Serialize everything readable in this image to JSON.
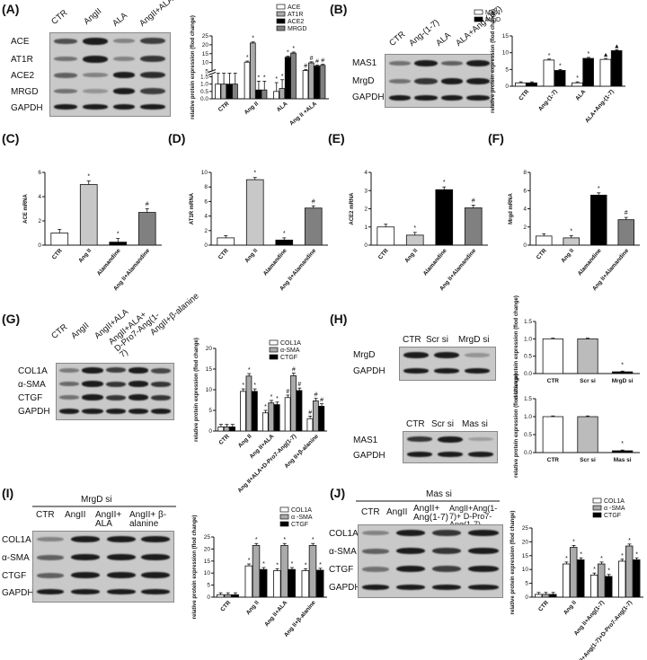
{
  "panels": {
    "A": {
      "label": "(A)",
      "lanes": [
        "CTR",
        "AngII",
        "ALA",
        "AngII+ALA"
      ],
      "rows": [
        "ACE",
        "AT1R",
        "ACE2",
        "MRGD",
        "GAPDH"
      ]
    },
    "B": {
      "label": "(B)",
      "lanes": [
        "CTR",
        "Ang-(1-7)",
        "ALA",
        "ALA+Ang-(1-7)"
      ],
      "rows": [
        "MAS1",
        "MrgD",
        "GAPDH"
      ]
    },
    "C": {
      "label": "(C)"
    },
    "D": {
      "label": "(D)"
    },
    "E": {
      "label": "(E)"
    },
    "F": {
      "label": "(F)"
    },
    "G": {
      "label": "(G)",
      "lanes": [
        "CTR",
        "AngII",
        "AngII+ALA",
        "AngII+ALA+ D-Pro7-Ang(1-7)",
        "AngII+β-alanine"
      ],
      "rows": [
        "COL1A",
        "α-SMA",
        "CTGF",
        "GAPDH"
      ]
    },
    "H": {
      "label": "(H)",
      "lanes_top": [
        "CTR",
        "Scr si",
        "MrgD si"
      ],
      "rows_top": [
        "MrgD",
        "GAPDH"
      ],
      "lanes_bottom": [
        "CTR",
        "Scr si",
        "Mas si"
      ],
      "rows_bottom": [
        "MAS1",
        "GAPDH"
      ]
    },
    "I": {
      "label": "(I)",
      "group": "MrgD si",
      "lanes": [
        "CTR",
        "AngII",
        "AngII+ ALA",
        "AngII+ β-alanine"
      ],
      "rows": [
        "COL1A",
        "α-SMA",
        "CTGF",
        "GAPDH"
      ]
    },
    "J": {
      "label": "(J)",
      "group": "Mas si",
      "lanes": [
        "CTR",
        "AngII",
        "AngII+ Ang(1-7)",
        "AngII+Ang(1-7)+ D-Pro7-Ang(1-7)"
      ],
      "rows": [
        "COL1A",
        "α-SMA",
        "CTGF",
        "GAPDH"
      ]
    }
  },
  "chart_data": [
    {
      "id": "A",
      "type": "bar",
      "categories": [
        "CTR",
        "Ang II",
        "ALA",
        "Ang II +ALA"
      ],
      "series": [
        {
          "name": "ACE",
          "values": [
            1.0,
            10.2,
            0.5,
            5.5
          ],
          "color": "#ffffff"
        },
        {
          "name": "AT1R",
          "values": [
            1.0,
            21.0,
            0.7,
            9.8
          ],
          "color": "#aaaaaa"
        },
        {
          "name": "ACE2",
          "values": [
            1.0,
            0.6,
            13.0,
            8.0
          ],
          "color": "#000000"
        },
        {
          "name": "MRGD",
          "values": [
            1.0,
            0.6,
            15.3,
            8.4
          ],
          "color": "#808080"
        }
      ],
      "ylabel": "relative protein expression (flod change)",
      "yticks": [
        "0.0",
        "0.5",
        "1.0",
        "1.5",
        "5",
        "10",
        "15",
        "20",
        "25"
      ],
      "axis_break": [
        1.5,
        5
      ],
      "annotations": [
        "*",
        "#"
      ]
    },
    {
      "id": "B",
      "type": "bar",
      "categories": [
        "CTR",
        "Ang-(1-7)",
        "ALA",
        "ALA+Ang-(1-7)"
      ],
      "series": [
        {
          "name": "Mas1",
          "values": [
            1.0,
            7.8,
            1.0,
            8.0
          ],
          "color": "#ffffff"
        },
        {
          "name": "MrgD",
          "values": [
            1.0,
            4.7,
            8.3,
            10.6
          ],
          "color": "#000000"
        }
      ],
      "ylabel": "relative protein expression (flod change)",
      "yticks": [
        "0",
        "5",
        "10",
        "15"
      ],
      "ylim": [
        0,
        15
      ],
      "annotations": [
        "*",
        "▲",
        "◆"
      ]
    },
    {
      "id": "C",
      "type": "bar",
      "categories": [
        "CTR",
        "Ang II",
        "Alamandine",
        "Ang II+Alamandine"
      ],
      "values": [
        1.0,
        5.0,
        0.25,
        2.7
      ],
      "colors": [
        "#ffffff",
        "#c8c8c8",
        "#000000",
        "#808080"
      ],
      "ylabel": "ACE mRNA",
      "yticks": [
        "0",
        "2",
        "4",
        "6"
      ],
      "ylim": [
        0,
        6
      ]
    },
    {
      "id": "D",
      "type": "bar",
      "categories": [
        "CTR",
        "Ang II",
        "Alamandine",
        "Ang II+Alamandine"
      ],
      "values": [
        1.0,
        9.0,
        0.7,
        5.1
      ],
      "colors": [
        "#ffffff",
        "#c8c8c8",
        "#000000",
        "#808080"
      ],
      "ylabel": "AT1R mRNA",
      "yticks": [
        "0",
        "2",
        "4",
        "6",
        "8",
        "10"
      ],
      "ylim": [
        0,
        10
      ]
    },
    {
      "id": "E",
      "type": "bar",
      "categories": [
        "CTR",
        "Ang II",
        "Alamandine",
        "Ang II+Alamandine"
      ],
      "values": [
        1.0,
        0.55,
        3.05,
        2.05
      ],
      "colors": [
        "#ffffff",
        "#c8c8c8",
        "#000000",
        "#808080"
      ],
      "ylabel": "ACE2 mRNA",
      "yticks": [
        "0",
        "1",
        "2",
        "3",
        "4"
      ],
      "ylim": [
        0,
        4
      ]
    },
    {
      "id": "F",
      "type": "bar",
      "categories": [
        "CTR",
        "Ang II",
        "Alamandine",
        "Ang II+Alamandine"
      ],
      "values": [
        1.0,
        0.8,
        5.5,
        2.8
      ],
      "colors": [
        "#ffffff",
        "#c8c8c8",
        "#000000",
        "#808080"
      ],
      "ylabel": "Mrgd mRNA",
      "yticks": [
        "0",
        "2",
        "4",
        "6",
        "8"
      ],
      "ylim": [
        0,
        8
      ]
    },
    {
      "id": "G",
      "type": "bar",
      "categories": [
        "CTR",
        "Ang II",
        "Ang II+ALA",
        "Ang II+ALA+D-Pro7-Ang(1-7)",
        "Ang II+β-alanine"
      ],
      "series": [
        {
          "name": "COL1A",
          "values": [
            1.0,
            9.6,
            4.4,
            8.1,
            3.0
          ],
          "color": "#ffffff"
        },
        {
          "name": "α-SMA",
          "values": [
            1.0,
            13.3,
            6.8,
            13.4,
            7.3
          ],
          "color": "#aaaaaa"
        },
        {
          "name": "CTGF",
          "values": [
            1.0,
            9.6,
            6.4,
            9.8,
            6.0
          ],
          "color": "#000000"
        }
      ],
      "ylabel": "relative protein expression (flod change)",
      "yticks": [
        "0",
        "5",
        "10",
        "15",
        "20"
      ],
      "ylim": [
        0,
        20
      ],
      "annotations": [
        "*",
        "#",
        "&"
      ]
    },
    {
      "id": "H-top",
      "type": "bar",
      "categories": [
        "CTR",
        "Scr si",
        "MrgD si"
      ],
      "values": [
        1.0,
        1.0,
        0.05
      ],
      "colors": [
        "#ffffff",
        "#bbbbbb",
        "#000000"
      ],
      "ylabel": "relative protein expression (flod change)",
      "yticks": [
        "0.0",
        "0.5",
        "1.0",
        "1.5"
      ],
      "ylim": [
        0,
        1.5
      ]
    },
    {
      "id": "H-bottom",
      "type": "bar",
      "categories": [
        "CTR",
        "Scr si",
        "Mas si"
      ],
      "values": [
        1.0,
        1.0,
        0.05
      ],
      "colors": [
        "#ffffff",
        "#bbbbbb",
        "#000000"
      ],
      "ylabel": "relative protein expression (flod change)",
      "yticks": [
        "0.0",
        "0.5",
        "1.0",
        "1.5"
      ],
      "ylim": [
        0,
        1.5
      ]
    },
    {
      "id": "I",
      "type": "bar",
      "categories": [
        "CTR",
        "Ang II",
        "Ang II+ALA",
        "Ang II+β-alanine"
      ],
      "series": [
        {
          "name": "COL1A",
          "values": [
            1.0,
            13.0,
            11.0,
            11.0
          ],
          "color": "#ffffff"
        },
        {
          "name": "α -SMA",
          "values": [
            1.0,
            21.5,
            21.5,
            21.5
          ],
          "color": "#aaaaaa"
        },
        {
          "name": "CTGF",
          "values": [
            1.0,
            11.5,
            11.5,
            11.2
          ],
          "color": "#000000"
        }
      ],
      "ylabel": "relative protein expression (flod change)",
      "yticks": [
        "0",
        "5",
        "10",
        "15",
        "20",
        "25"
      ],
      "ylim": [
        0,
        25
      ],
      "annotations": [
        "*"
      ]
    },
    {
      "id": "J",
      "type": "bar",
      "categories": [
        "CTR",
        "Ang II",
        "Ang II+Ang(1-7)",
        "Ang II+Ang(1-7)+D-Pro7-Ang(1-7)"
      ],
      "series": [
        {
          "name": "COL1A",
          "values": [
            1.0,
            12.0,
            8.0,
            13.0
          ],
          "color": "#ffffff"
        },
        {
          "name": "α -SMA",
          "values": [
            1.0,
            18.0,
            12.0,
            18.5
          ],
          "color": "#aaaaaa"
        },
        {
          "name": "CTGF",
          "values": [
            1.0,
            13.5,
            7.5,
            13.5
          ],
          "color": "#000000"
        }
      ],
      "ylabel": "relative protein expression (flod change)",
      "yticks": [
        "0",
        "5",
        "10",
        "15",
        "20",
        "25"
      ],
      "ylim": [
        0,
        25
      ],
      "annotations": [
        "*"
      ]
    }
  ]
}
